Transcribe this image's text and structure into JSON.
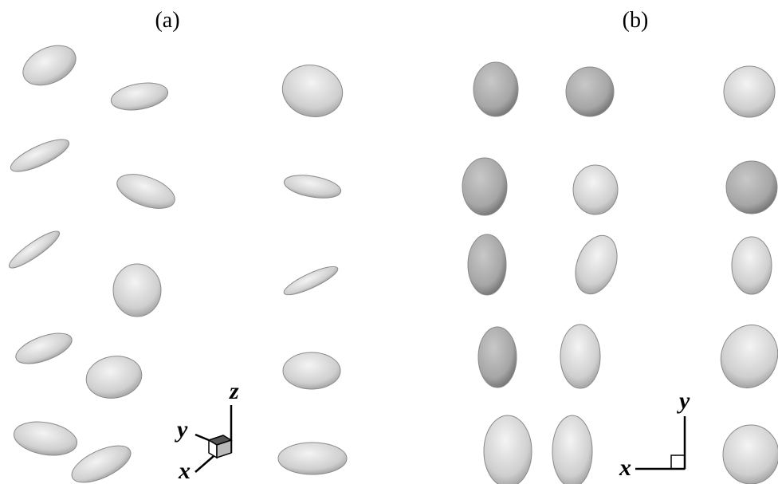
{
  "panels": [
    {
      "label": "(a)",
      "axes": {
        "z": "z",
        "y": "y",
        "x": "x"
      }
    },
    {
      "label": "(b)",
      "axes": {
        "y": "y",
        "x": "x"
      }
    }
  ]
}
